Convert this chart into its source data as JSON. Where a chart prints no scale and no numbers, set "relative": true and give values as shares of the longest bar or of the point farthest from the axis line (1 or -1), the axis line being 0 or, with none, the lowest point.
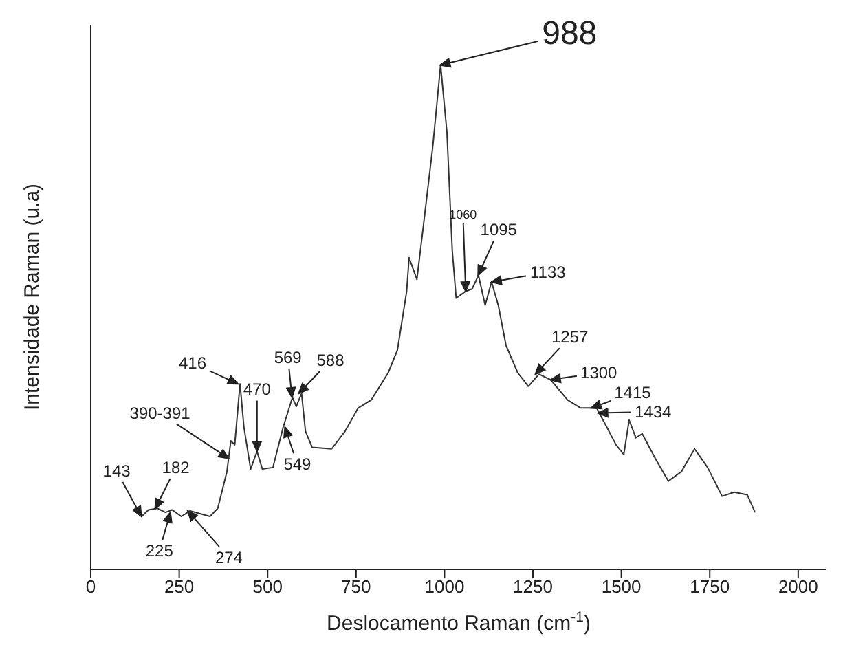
{
  "chart_data": {
    "type": "line",
    "xlabel": "Deslocamento Raman (cm$^{-1}$)",
    "ylabel": "Intensidade Raman (u.a)",
    "relative": true,
    "xlim": [
      0,
      2080
    ],
    "xticks": [
      0,
      250,
      500,
      750,
      1000,
      1250,
      1500,
      1750,
      2000
    ],
    "color": "#333333",
    "x": [
      144,
      163,
      189,
      211,
      230,
      256,
      281,
      337,
      359,
      385,
      396,
      407,
      422,
      433,
      452,
      470,
      485,
      515,
      544,
      570,
      581,
      596,
      607,
      626,
      681,
      719,
      756,
      793,
      841,
      867,
      893,
      900,
      922,
      941,
      967,
      989,
      1007,
      1022,
      1033,
      1059,
      1078,
      1096,
      1115,
      1133,
      1152,
      1174,
      1207,
      1237,
      1267,
      1300,
      1348,
      1385,
      1430,
      1459,
      1485,
      1507,
      1522,
      1541,
      1559,
      1596,
      1633,
      1670,
      1707,
      1744,
      1785,
      1819,
      1856,
      1878
    ],
    "values": [
      0.105,
      0.118,
      0.121,
      0.113,
      0.118,
      0.105,
      0.116,
      0.105,
      0.121,
      0.194,
      0.255,
      0.247,
      0.368,
      0.282,
      0.199,
      0.234,
      0.199,
      0.202,
      0.282,
      0.341,
      0.323,
      0.349,
      0.274,
      0.242,
      0.239,
      0.274,
      0.32,
      0.336,
      0.39,
      0.435,
      0.551,
      0.618,
      0.575,
      0.685,
      0.839,
      1.0,
      0.866,
      0.632,
      0.538,
      0.551,
      0.556,
      0.583,
      0.524,
      0.57,
      0.524,
      0.444,
      0.39,
      0.363,
      0.387,
      0.376,
      0.336,
      0.32,
      0.32,
      0.282,
      0.247,
      0.228,
      0.296,
      0.261,
      0.269,
      0.22,
      0.175,
      0.194,
      0.239,
      0.202,
      0.145,
      0.153,
      0.148,
      0.113
    ],
    "annotations": [
      {
        "text": "143",
        "x": 143,
        "y": 0.105
      },
      {
        "text": "182",
        "x": 182,
        "y": 0.12
      },
      {
        "text": "225",
        "x": 225,
        "y": 0.113
      },
      {
        "text": "274",
        "x": 274,
        "y": 0.116
      },
      {
        "text": "390-391",
        "x": 390,
        "y": 0.22
      },
      {
        "text": "416",
        "x": 416,
        "y": 0.368
      },
      {
        "text": "470",
        "x": 470,
        "y": 0.234
      },
      {
        "text": "549",
        "x": 549,
        "y": 0.282
      },
      {
        "text": "569",
        "x": 569,
        "y": 0.341
      },
      {
        "text": "588",
        "x": 588,
        "y": 0.349
      },
      {
        "text": "988",
        "x": 988,
        "y": 1.0
      },
      {
        "text": "1060",
        "x": 1060,
        "y": 0.551
      },
      {
        "text": "1095",
        "x": 1095,
        "y": 0.583
      },
      {
        "text": "1133",
        "x": 1133,
        "y": 0.57
      },
      {
        "text": "1257",
        "x": 1257,
        "y": 0.387
      },
      {
        "text": "1300",
        "x": 1300,
        "y": 0.376
      },
      {
        "text": "1415",
        "x": 1415,
        "y": 0.32
      },
      {
        "text": "1434",
        "x": 1434,
        "y": 0.31
      }
    ]
  }
}
